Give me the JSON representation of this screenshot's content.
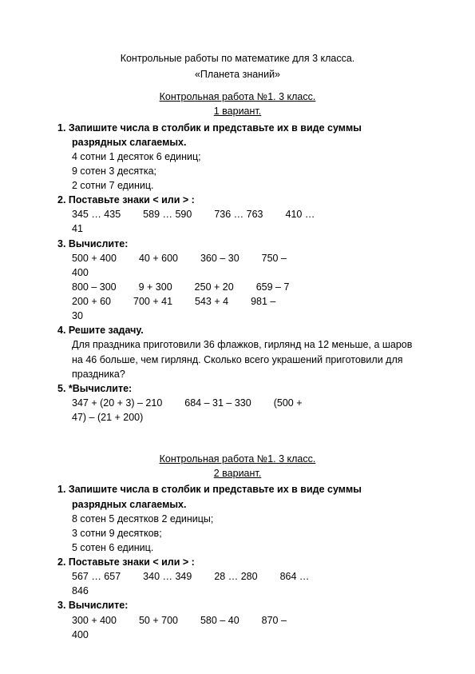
{
  "header": {
    "title": "Контрольные работы по математике для 3 класса.",
    "subtitle": "«Планета знаний»"
  },
  "v1": {
    "header": "Контрольная работа №1.    3 класс.",
    "variant": "1 вариант.",
    "t1_head": "1. Запишите числа в столбик и представьте их в виде суммы разрядных слагаемых.",
    "t1_l1": "4 сотни  1 десяток  6 единиц;",
    "t1_l2": "9 сотен  3 десятка;",
    "t1_l3": "2 сотни  7 единиц.",
    "t2_head": "2. Поставьте знаки  <  или  >  :",
    "t2_c": [
      "345 … 435",
      "589 … 590",
      "736 … 763",
      "410 …"
    ],
    "t2_tail": "41",
    "t3_head": "3. Вычислите:",
    "t3_r1": [
      "500 + 400",
      "40 + 600",
      "360 – 30",
      "750 –"
    ],
    "t3_r1_tail": "400",
    "t3_r2": [
      "800 – 300",
      "9 + 300",
      "250 + 20",
      "659 – 7"
    ],
    "t3_r3": [
      "200 + 60",
      "700 + 41",
      "543 + 4",
      "981 –"
    ],
    "t3_r3_tail": "30",
    "t4_head": "4. Решите задачу.",
    "t4_body": "Для праздника приготовили 36 флажков, гирлянд на 12 меньше, а шаров на 46 больше, чем гирлянд. Сколько всего украшений приготовили для праздника?",
    "t5_head": "5. *Вычислите:",
    "t5_c": [
      "347 + (20 + 3) – 210",
      "684 – 31 – 330",
      "(500 +"
    ],
    "t5_tail": "47) – (21 + 200)"
  },
  "v2": {
    "header": "Контрольная работа №1.     3 класс.",
    "variant": "2 вариант.",
    "t1_head": "1. Запишите числа в столбик и представьте их в виде суммы разрядных слагаемых.",
    "t1_l1": "8 сотен  5 десятков  2 единицы;",
    "t1_l2": "3 сотни  9 десятков;",
    "t1_l3": "5 сотен  6 единиц.",
    "t2_head": "2. Поставьте знаки  <  или  >  :",
    "t2_c": [
      "567 … 657",
      "340 … 349",
      "28 … 280",
      "864 …"
    ],
    "t2_tail": "846",
    "t3_head": "3. Вычислите:",
    "t3_r1": [
      "300 + 400",
      "50 + 700",
      "580 – 40",
      "870 –"
    ],
    "t3_r1_tail": "400"
  }
}
